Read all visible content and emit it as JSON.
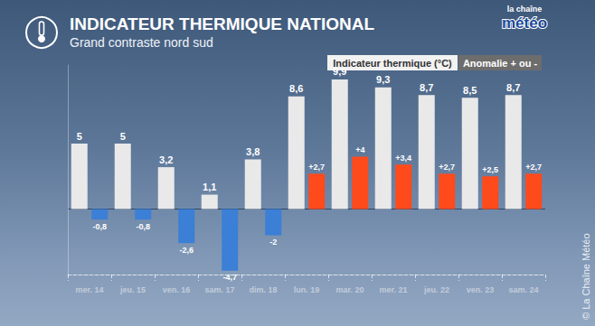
{
  "chart_data": {
    "type": "bar",
    "title": "INDICATEUR THERMIQUE NATIONAL",
    "subtitle": "Grand contraste nord sud",
    "categories": [
      "mer. 14",
      "jeu. 15",
      "ven. 16",
      "sam. 17",
      "dim. 18",
      "lun. 19",
      "mar. 20",
      "mer. 21",
      "jeu. 22",
      "ven. 23",
      "sam. 24"
    ],
    "series": [
      {
        "name": "Indicateur thermique (°C)",
        "color": "#e9e9e9",
        "values": [
          5,
          5,
          3.2,
          1.1,
          3.8,
          8.6,
          9.9,
          9.3,
          8.7,
          8.5,
          8.7
        ],
        "value_labels": [
          "5",
          "5",
          "3,2",
          "1,1",
          "3,8",
          "8,6",
          "9,9",
          "9,3",
          "8,7",
          "8,5",
          "8,7"
        ]
      },
      {
        "name": "Anomalie + ou -",
        "colors": [
          "#3b7fd6",
          "#3b7fd6",
          "#3b7fd6",
          "#3b7fd6",
          "#3b7fd6",
          "#ff4a1c",
          "#ff4a1c",
          "#ff4a1c",
          "#ff4a1c",
          "#ff4a1c",
          "#ff4a1c"
        ],
        "values": [
          -0.8,
          -0.8,
          -2.6,
          -4.7,
          -2,
          2.7,
          4,
          3.4,
          2.7,
          2.5,
          2.7
        ],
        "value_labels": [
          "-0,8",
          "-0,8",
          "-2,6",
          "-4,7",
          "-2",
          "+2,7",
          "+4",
          "+3,4",
          "+2,7",
          "+2,5",
          "+2,7"
        ]
      }
    ],
    "ylim": [
      -5,
      11
    ],
    "yticks": [
      0
    ],
    "grid": true,
    "data_labels": true,
    "tick_labels": "x",
    "annotations": [
      "la chaîne",
      "météo",
      "© La Chaîne Météo"
    ]
  }
}
